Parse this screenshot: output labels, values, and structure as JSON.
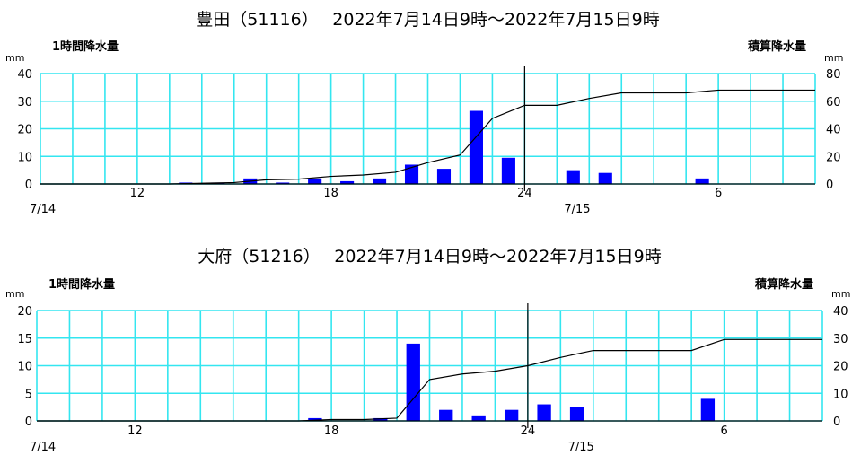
{
  "chart_data": [
    {
      "type": "bar+line",
      "title": "豊田（51116）　 2022年7月14日9時～2022年7月15日9時",
      "left_axis_label": "1時間降水量",
      "right_axis_label": "積算降水量",
      "left_unit": "mm",
      "right_unit": "mm",
      "left_ylim": [
        0,
        40
      ],
      "right_ylim": [
        0,
        80
      ],
      "left_ticks": [
        "0",
        "10",
        "20",
        "30",
        "40"
      ],
      "right_ticks": [
        "0",
        "20",
        "40",
        "60",
        "80"
      ],
      "x_tick_labels": [
        {
          "hour": 3,
          "label": "12"
        },
        {
          "hour": 9,
          "label": "18"
        },
        {
          "hour": 15,
          "label": "24"
        },
        {
          "hour": 21,
          "label": "6"
        }
      ],
      "date_labels": [
        {
          "hour": 0,
          "label": "7/14"
        },
        {
          "hour": 16.5,
          "label": "7/15"
        }
      ],
      "grid": true,
      "bars_hourly_mm": [
        0,
        0,
        0,
        0,
        0.5,
        0.5,
        2,
        0.5,
        2,
        1,
        2,
        7,
        5.5,
        26.5,
        9.5,
        0,
        5,
        4,
        0,
        0,
        2,
        0,
        0,
        0
      ],
      "line_cumulative_mm": [
        0,
        0,
        0,
        0,
        0.5,
        1,
        3,
        3.5,
        5.5,
        6.5,
        8.5,
        15.5,
        21,
        47.5,
        57,
        57,
        62,
        66,
        66,
        66,
        68,
        68,
        68,
        68
      ]
    },
    {
      "type": "bar+line",
      "title": "大府（51216）　 2022年7月14日9時～2022年7月15日9時",
      "left_axis_label": "1時間降水量",
      "right_axis_label": "積算降水量",
      "left_unit": "mm",
      "right_unit": "mm",
      "left_ylim": [
        0,
        20
      ],
      "right_ylim": [
        0,
        40
      ],
      "left_ticks": [
        "0",
        "5",
        "10",
        "15",
        "20"
      ],
      "right_ticks": [
        "0",
        "10",
        "20",
        "30",
        "40"
      ],
      "x_tick_labels": [
        {
          "hour": 3,
          "label": "12"
        },
        {
          "hour": 9,
          "label": "18"
        },
        {
          "hour": 15,
          "label": "24"
        },
        {
          "hour": 21,
          "label": "6"
        }
      ],
      "date_labels": [
        {
          "hour": 0,
          "label": "7/14"
        },
        {
          "hour": 16.5,
          "label": "7/15"
        }
      ],
      "grid": true,
      "bars_hourly_mm": [
        0,
        0,
        0,
        0,
        0,
        0,
        0,
        0,
        0.5,
        0,
        0.5,
        14,
        2,
        1,
        2,
        3,
        2.5,
        0,
        0,
        0,
        4,
        0,
        0,
        0
      ],
      "line_cumulative_mm": [
        0,
        0,
        0,
        0,
        0,
        0,
        0,
        0,
        0.5,
        0.5,
        1,
        15,
        17,
        18,
        20,
        23,
        25.5,
        25.5,
        25.5,
        25.5,
        29.5,
        29.5,
        29.5,
        29.5
      ]
    }
  ]
}
